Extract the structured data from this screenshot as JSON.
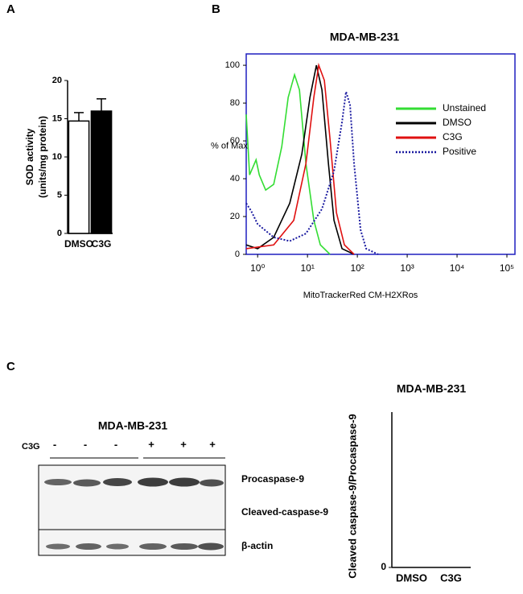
{
  "panel_labels": [
    "A",
    "B",
    "C"
  ],
  "chart_data": [
    {
      "type": "bar",
      "ylabel": [
        "SOD activity",
        "(units/mg protein)"
      ],
      "categories": [
        "DMSO",
        "C3G"
      ],
      "values": [
        14.7,
        16.0
      ],
      "errors": [
        1.1,
        1.6
      ],
      "colors": [
        "#ffffff",
        "#000000"
      ],
      "ylim": [
        0,
        20
      ],
      "yticks": [
        0,
        5,
        10,
        15,
        20
      ]
    },
    {
      "type": "line",
      "title": "MDA-MB-231",
      "ylabel": "% of Max",
      "xlabel": "MitoTrackerRed CM-H2XRos",
      "xscale": "log",
      "xlim": [
        0.59,
        145000
      ],
      "ylim": [
        0,
        106
      ],
      "xticks": [
        {
          "value": 1,
          "label": "10⁰"
        },
        {
          "value": 10,
          "label": "10¹"
        },
        {
          "value": 100,
          "label": "10²"
        },
        {
          "value": 1000,
          "label": "10³"
        },
        {
          "value": 10000,
          "label": "10⁴"
        },
        {
          "value": 100000,
          "label": "10⁵"
        }
      ],
      "yticks": [
        0,
        20,
        40,
        60,
        80,
        100
      ],
      "frame_color": "#1f1fbf",
      "legend": "upper right",
      "series": [
        {
          "name": "Unstained",
          "color": "#33dd33",
          "line_style": "solid",
          "x": [
            0.59,
            0.69,
            0.93,
            1.08,
            1.45,
            2.1,
            3.05,
            4.1,
            5.5,
            6.9,
            9.3,
            13.4,
            18.1,
            28.3
          ],
          "values": [
            74,
            42,
            50,
            42,
            34,
            37,
            57,
            83,
            95,
            87,
            48,
            18,
            5,
            0
          ]
        },
        {
          "name": "DMSO",
          "color": "#000000",
          "line_style": "solid",
          "x": [
            0.59,
            1,
            2.1,
            4.4,
            7.7,
            11.2,
            15.1,
            19.5,
            26.3,
            34,
            49.3,
            86
          ],
          "values": [
            5,
            3,
            9,
            27,
            53,
            83,
            100,
            87,
            48,
            18,
            3,
            0
          ]
        },
        {
          "name": "C3G",
          "color": "#e01010",
          "line_style": "solid",
          "x": [
            0.59,
            2.1,
            5.3,
            9.3,
            13.4,
            16.8,
            21.8,
            28.3,
            38.1,
            55,
            86
          ],
          "values": [
            3,
            5,
            18,
            48,
            83,
            100,
            92,
            61,
            22,
            5,
            0
          ]
        },
        {
          "name": "Positive",
          "color": "#1a1aa0",
          "line_style": "dotted",
          "x": [
            0.59,
            0.74,
            1,
            2.1,
            4.4,
            9.3,
            19.5,
            34,
            49.3,
            59.3,
            71.4,
            86,
            116,
            150,
            262
          ],
          "values": [
            27,
            23,
            16,
            9,
            7,
            11,
            24,
            44,
            70,
            86,
            79,
            48,
            13,
            3,
            0
          ]
        }
      ]
    },
    {
      "type": "bar",
      "title": "MDA-MB-231",
      "ylabel": "Cleaved caspase-9/Procaspase-9",
      "categories": [
        "DMSO",
        "C3G"
      ],
      "values": [
        null,
        null
      ],
      "yticks": [
        0
      ]
    }
  ],
  "western_blot": {
    "title": "MDA-MB-231",
    "treatment": "C3G",
    "lanes": [
      "-",
      "-",
      "-",
      "+",
      "+",
      "+"
    ],
    "rows": [
      "Procaspase-9",
      "Cleaved-caspase-9",
      "β-actin"
    ]
  }
}
